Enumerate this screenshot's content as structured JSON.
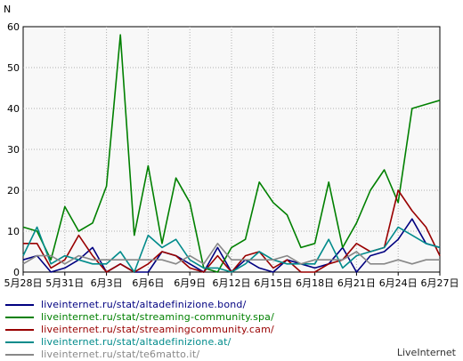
{
  "chart_data": {
    "type": "line",
    "ylabel": "N",
    "ylim": [
      0,
      60
    ],
    "y_ticks": [
      "0",
      "10",
      "20",
      "30",
      "40",
      "50",
      "60"
    ],
    "grid": true,
    "x_tick_labels": [
      "5月28日",
      "5月31日",
      "6月3日",
      "6月6日",
      "6月9日",
      "6月12日",
      "6月15日",
      "6月18日",
      "6月21日",
      "6月24日",
      "6月27日"
    ],
    "x_tick_index": [
      0,
      3,
      6,
      9,
      12,
      15,
      18,
      21,
      24,
      27,
      30
    ],
    "series": [
      {
        "name": "liveinternet.ru/stat/altadefinizione.bond/",
        "color": "#000080",
        "values": [
          3,
          4,
          0,
          1,
          3,
          6,
          0,
          2,
          0,
          0,
          5,
          4,
          2,
          0,
          6,
          0,
          3,
          1,
          0,
          3,
          2,
          1,
          2,
          6,
          0,
          4,
          5,
          8,
          13,
          7,
          6
        ]
      },
      {
        "name": "liveinternet.ru/stat/streaming-community.spa/",
        "color": "#008000",
        "values": [
          11,
          10,
          3,
          16,
          10,
          12,
          21,
          58,
          9,
          26,
          7,
          23,
          17,
          1,
          0,
          6,
          8,
          22,
          17,
          14,
          6,
          7,
          22,
          6,
          12,
          20,
          25,
          17,
          40,
          41,
          42
        ]
      },
      {
        "name": "liveinternet.ru/stat/streamingcommunity.cam/",
        "color": "#990000",
        "values": [
          7,
          7,
          1,
          3,
          9,
          4,
          0,
          2,
          0,
          2,
          5,
          4,
          1,
          0,
          4,
          0,
          4,
          5,
          1,
          3,
          0,
          0,
          2,
          3,
          7,
          5,
          6,
          20,
          15,
          11,
          4
        ]
      },
      {
        "name": "liveinternet.ru/stat/altadefinizione.at/",
        "color": "#008b8b",
        "values": [
          4,
          11,
          2,
          4,
          3,
          2,
          2,
          5,
          0,
          9,
          6,
          8,
          3,
          1,
          1,
          0,
          2,
          5,
          3,
          2,
          2,
          2,
          8,
          1,
          4,
          5,
          6,
          11,
          9,
          7,
          6
        ]
      },
      {
        "name": "liveinternet.ru/stat/te6matto.it/",
        "color": "#888888",
        "values": [
          2,
          4,
          4,
          2,
          4,
          3,
          3,
          3,
          3,
          3,
          3,
          2,
          4,
          2,
          7,
          3,
          3,
          3,
          3,
          4,
          2,
          3,
          3,
          3,
          5,
          2,
          2,
          3,
          2,
          3,
          3
        ]
      }
    ]
  },
  "brand": "LiveInternet"
}
